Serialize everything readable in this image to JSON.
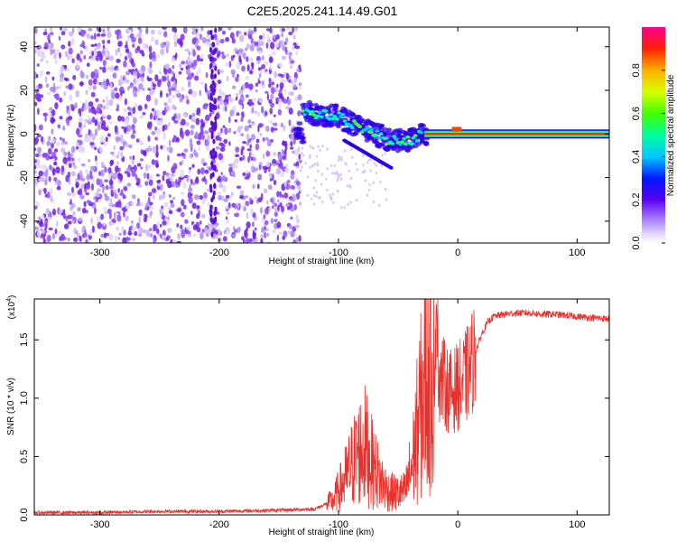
{
  "title": "C2E5.2025.241.14.49.G01",
  "colors": {
    "snr_line": "#e8312c",
    "scatter": "#6f1fe0",
    "axis": "#000000"
  },
  "chart_data": [
    {
      "type": "heatmap",
      "name": "spectrogram",
      "xlabel": "Height of straight line (km)",
      "ylabel": "Frequency (Hz)",
      "xlim": [
        -355,
        127
      ],
      "ylim": [
        -50,
        49
      ],
      "xticks": [
        -300,
        -200,
        -100,
        0,
        100
      ],
      "xtick_labels": [
        "-300",
        "-200",
        "-100",
        "0",
        "100"
      ],
      "yticks": [
        -40,
        -20,
        0,
        20,
        40
      ],
      "ytick_labels": [
        "-40",
        "-20",
        "0",
        "20",
        "40"
      ],
      "noise_region_x": [
        -355,
        -132
      ],
      "signal_track": [
        {
          "x": -130,
          "f": 10
        },
        {
          "x": -115,
          "f": 9
        },
        {
          "x": -100,
          "f": 8
        },
        {
          "x": -85,
          "f": 4
        },
        {
          "x": -70,
          "f": 0
        },
        {
          "x": -55,
          "f": -3
        },
        {
          "x": -40,
          "f": -3
        },
        {
          "x": -30,
          "f": 0
        },
        {
          "x": -10,
          "f": 1
        },
        {
          "x": 0,
          "f": 1
        },
        {
          "x": 127,
          "f": 0
        }
      ],
      "colorbar": {
        "label": "Normalized spectral amplitude",
        "ticks": [
          0.0,
          0.2,
          0.4,
          0.6,
          0.8
        ],
        "tick_labels": [
          "0.0",
          "0.2",
          "0.4",
          "0.6",
          "0.8"
        ],
        "range": [
          0,
          1
        ]
      }
    },
    {
      "type": "line",
      "name": "snr",
      "xlabel": "Height of straight line (km)",
      "ylabel": "SNR (10 * v/v)",
      "multiplier_prefix": "(x10",
      "multiplier_exp": "4",
      "multiplier_suffix": ")",
      "xlim": [
        -355,
        127
      ],
      "ylim": [
        0,
        1.85
      ],
      "xticks": [
        -300,
        -200,
        -100,
        0,
        100
      ],
      "xtick_labels": [
        "-300",
        "-200",
        "-100",
        "0",
        "100"
      ],
      "yticks": [
        0.0,
        0.5,
        1.0,
        1.5
      ],
      "ytick_labels": [
        "0.0",
        "0.5",
        "1.0",
        "1.5"
      ],
      "series": [
        {
          "name": "SNR",
          "x": [
            -355,
            -300,
            -250,
            -200,
            -150,
            -120,
            -105,
            -95,
            -88,
            -82,
            -78,
            -72,
            -65,
            -58,
            -50,
            -44,
            -38,
            -33,
            -28,
            -25,
            -22,
            -18,
            -15,
            -10,
            -5,
            0,
            5,
            10,
            15,
            20,
            25,
            30,
            40,
            50,
            60,
            70,
            80,
            90,
            100,
            110,
            127
          ],
          "y": [
            0.02,
            0.02,
            0.03,
            0.03,
            0.04,
            0.05,
            0.12,
            0.3,
            0.45,
            0.55,
            0.6,
            0.45,
            0.3,
            0.2,
            0.18,
            0.2,
            0.45,
            0.8,
            1.1,
            1.3,
            1.35,
            1.4,
            1.2,
            1.1,
            1.05,
            1.1,
            1.15,
            1.25,
            1.4,
            1.55,
            1.65,
            1.7,
            1.72,
            1.73,
            1.73,
            1.72,
            1.72,
            1.71,
            1.7,
            1.69,
            1.68
          ]
        }
      ]
    }
  ]
}
